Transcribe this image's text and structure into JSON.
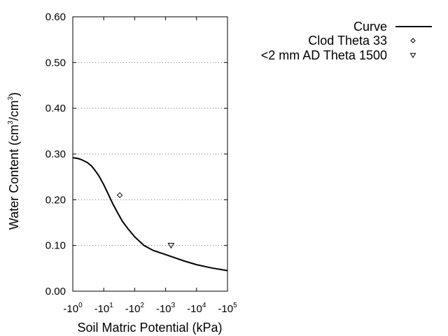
{
  "chart_data": {
    "type": "line",
    "xlabel": "Soil Matric Potential (kPa)",
    "ylabel_base": "Water Content (cm",
    "ylabel_sup1": "3",
    "ylabel_mid": "/cm",
    "ylabel_sup2": "3",
    "ylabel_end": ")",
    "x_scale": "log",
    "xlim": [
      1,
      100000
    ],
    "ylim": [
      0,
      0.6
    ],
    "grid": "horizontal dotted",
    "legend_position": "top-right",
    "x_ticks": [
      {
        "value": 1,
        "base": "-10",
        "exp": "0"
      },
      {
        "value": 10,
        "base": "-10",
        "exp": "1"
      },
      {
        "value": 100,
        "base": "-10",
        "exp": "2"
      },
      {
        "value": 1000,
        "base": "-10",
        "exp": "3"
      },
      {
        "value": 10000,
        "base": "-10",
        "exp": "4"
      },
      {
        "value": 100000,
        "base": "-10",
        "exp": "5"
      }
    ],
    "y_ticks": [
      {
        "value": 0.0,
        "label": "0.00"
      },
      {
        "value": 0.1,
        "label": "0.10"
      },
      {
        "value": 0.2,
        "label": "0.20"
      },
      {
        "value": 0.3,
        "label": "0.30"
      },
      {
        "value": 0.4,
        "label": "0.40"
      },
      {
        "value": 0.5,
        "label": "0.50"
      },
      {
        "value": 0.6,
        "label": "0.60"
      }
    ],
    "series": [
      {
        "name": "Curve",
        "kind": "line",
        "marker": "line",
        "points": [
          [
            1,
            0.292
          ],
          [
            1.5,
            0.29
          ],
          [
            2,
            0.287
          ],
          [
            3,
            0.281
          ],
          [
            4,
            0.274
          ],
          [
            5,
            0.266
          ],
          [
            7,
            0.252
          ],
          [
            10,
            0.233
          ],
          [
            15,
            0.208
          ],
          [
            20,
            0.19
          ],
          [
            30,
            0.168
          ],
          [
            40,
            0.153
          ],
          [
            60,
            0.137
          ],
          [
            100,
            0.119
          ],
          [
            200,
            0.1
          ],
          [
            400,
            0.089
          ],
          [
            1000,
            0.08
          ],
          [
            2000,
            0.073
          ],
          [
            4000,
            0.066
          ],
          [
            10000,
            0.058
          ],
          [
            30000,
            0.051
          ],
          [
            100000,
            0.045
          ]
        ]
      },
      {
        "name": "Clod Theta 33",
        "kind": "scatter",
        "marker": "diamond",
        "points": [
          [
            33,
            0.21
          ]
        ]
      },
      {
        "name": "<2 mm AD Theta 1500",
        "kind": "scatter",
        "marker": "triangle-down",
        "points": [
          [
            1500,
            0.1
          ]
        ]
      }
    ]
  }
}
